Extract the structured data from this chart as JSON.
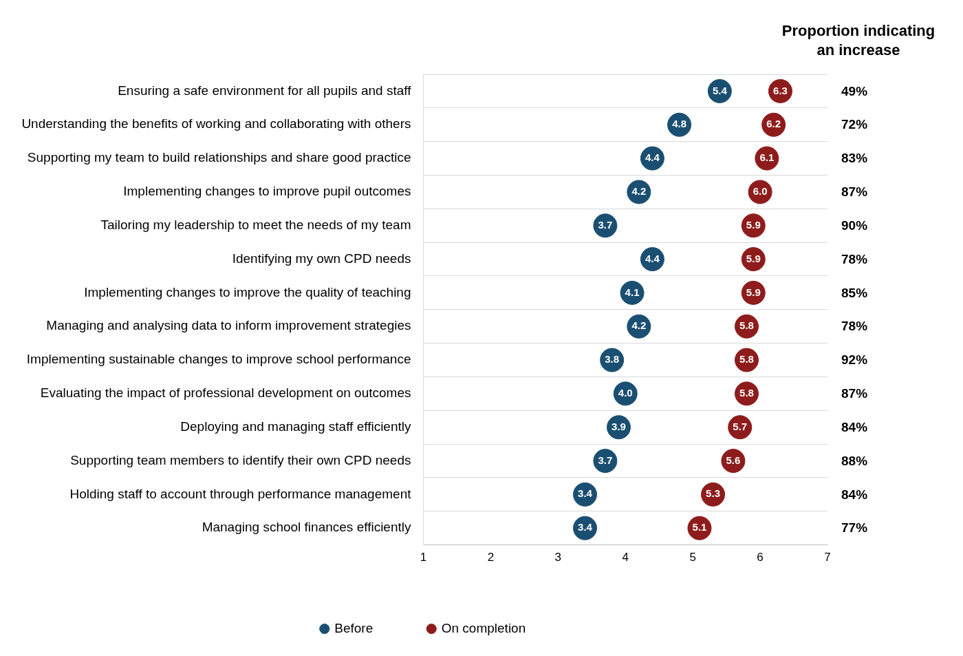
{
  "chart_data": {
    "type": "scatter",
    "orientation": "horizontal",
    "categories": [
      "Ensuring a safe environment for all pupils and staff",
      "Understanding the benefits of working and collaborating with others",
      "Supporting my team to build relationships and share good practice",
      "Implementing changes to improve pupil outcomes",
      "Tailoring my leadership to meet the needs of my team",
      "Identifying my own CPD needs",
      "Implementing changes to improve the quality of teaching",
      "Managing and analysing data to inform improvement strategies",
      "Implementing sustainable changes to improve school performance",
      "Evaluating the impact of professional development on outcomes",
      "Deploying and managing staff efficiently",
      "Supporting team members to identify their own CPD needs",
      "Holding staff to account through performance management",
      "Managing school finances efficiently"
    ],
    "series": [
      {
        "name": "Before",
        "color": "#1b4f72",
        "values": [
          5.4,
          4.8,
          4.4,
          4.2,
          3.7,
          4.4,
          4.1,
          4.2,
          3.8,
          4.0,
          3.9,
          3.7,
          3.4,
          3.4
        ],
        "value_labels": [
          "5.4",
          "4.8",
          "4.4",
          "4.2",
          "3.7",
          "4.4",
          "4.1",
          "4.2",
          "3.8",
          "4.0",
          "3.9",
          "3.7",
          "3.4",
          "3.4"
        ]
      },
      {
        "name": "On completion",
        "color": "#8e1c1c",
        "values": [
          6.3,
          6.2,
          6.1,
          6.0,
          5.9,
          5.9,
          5.9,
          5.8,
          5.8,
          5.8,
          5.7,
          5.6,
          5.3,
          5.1
        ],
        "value_labels": [
          "6.3",
          "6.2",
          "6.1",
          "6.0",
          "5.9",
          "5.9",
          "5.9",
          "5.8",
          "5.8",
          "5.8",
          "5.7",
          "5.6",
          "5.3",
          "5.1"
        ]
      }
    ],
    "xlim": [
      1,
      7
    ],
    "xticks": [
      1,
      2,
      3,
      4,
      5,
      6,
      7
    ],
    "marker": "circle",
    "grid": "y",
    "legend": "bottom",
    "annotations": [
      "Proportion indicating an increase",
      "49%",
      "72%",
      "83%",
      "87%",
      "90%",
      "78%",
      "85%",
      "78%",
      "92%",
      "87%",
      "84%",
      "88%",
      "84%",
      "77%"
    ]
  }
}
